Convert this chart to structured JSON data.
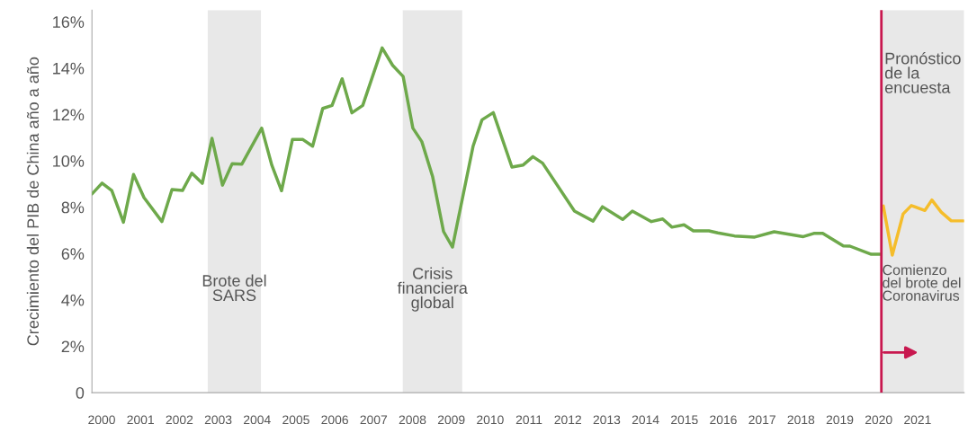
{
  "chart_data": {
    "type": "line",
    "ylabel": "Crecimiento del PIB de China año a año",
    "xlim": [
      1999.75,
      2022.2
    ],
    "xticks": [
      2000,
      2001,
      2002,
      2003,
      2004,
      2005,
      2006,
      2007,
      2008,
      2009,
      2010,
      2011,
      2012,
      2013,
      2014,
      2015,
      2016,
      2017,
      2018,
      2019,
      2020,
      2021
    ],
    "ylim": [
      0,
      16.5
    ],
    "yticks": [
      0,
      {
        "value": 2,
        "label": "2%"
      },
      {
        "value": 4,
        "label": "4%"
      },
      {
        "value": 6,
        "label": "6%"
      },
      {
        "value": 8,
        "label": "8%"
      },
      {
        "value": 10,
        "label": "10%"
      },
      {
        "value": 12,
        "label": "12%"
      },
      {
        "value": 14,
        "label": "14%"
      },
      {
        "value": 16,
        "label": "16%"
      }
    ],
    "grid": false,
    "legend": false,
    "series": [
      {
        "color": "#6ea94b",
        "x": [
          1999.75,
          2000.01,
          2000.26,
          2000.56,
          2000.82,
          2001.09,
          2001.55,
          2001.81,
          2002.08,
          2002.32,
          2002.59,
          2002.84,
          2003.11,
          2003.36,
          2003.61,
          2004.12,
          2004.38,
          2004.63,
          2004.91,
          2005.18,
          2005.43,
          2005.69,
          2005.93,
          2006.19,
          2006.44,
          2006.72,
          2007.22,
          2007.49,
          2007.76,
          2008.01,
          2008.24,
          2008.52,
          2008.8,
          2009.03,
          2009.56,
          2009.79,
          2010.08,
          2010.56,
          2010.85,
          2011.1,
          2011.35,
          2012.17,
          2012.65,
          2012.89,
          2013.41,
          2013.66,
          2014.15,
          2014.44,
          2014.68,
          2014.99,
          2015.23,
          2015.63,
          2015.86,
          2016.29,
          2016.81,
          2017.31,
          2018.06,
          2018.33,
          2018.56,
          2019.09,
          2019.26,
          2019.81,
          2020.05
        ],
        "values": [
          8.57,
          9.04,
          8.72,
          7.35,
          9.41,
          8.41,
          7.38,
          8.76,
          8.72,
          9.47,
          9.03,
          10.97,
          8.95,
          9.88,
          9.86,
          11.41,
          9.81,
          8.71,
          10.92,
          10.92,
          10.63,
          12.26,
          12.39,
          13.54,
          12.07,
          12.39,
          14.87,
          14.12,
          13.64,
          11.41,
          10.83,
          9.31,
          6.95,
          6.28,
          10.63,
          11.77,
          12.08,
          9.73,
          9.82,
          10.18,
          9.9,
          7.83,
          7.4,
          8.02,
          7.47,
          7.83,
          7.38,
          7.49,
          7.14,
          7.24,
          6.98,
          6.98,
          6.89,
          6.76,
          6.71,
          6.94,
          6.73,
          6.87,
          6.87,
          6.33,
          6.32,
          5.97,
          5.97
        ]
      },
      {
        "color": "#f5bd2b",
        "x": [
          2020.12,
          2020.35,
          2020.63,
          2020.84,
          2021.19,
          2021.37,
          2021.61,
          2021.87,
          2022.18
        ],
        "values": [
          8.05,
          5.93,
          7.71,
          8.07,
          7.86,
          8.31,
          7.79,
          7.41,
          7.41
        ]
      }
    ],
    "bands": [
      {
        "axis": "x",
        "from": 2002.73,
        "to": 2004.1,
        "label": "Brote del\nSARS",
        "color": "#e8e8e8"
      },
      {
        "axis": "x",
        "from": 2007.75,
        "to": 2009.28,
        "label": "Crisis\nfinanciera\nglobal",
        "color": "#e8e8e8"
      },
      {
        "axis": "x",
        "from": 2020.07,
        "to": 2022.2,
        "label": "Pronóstico\nde la\nencuesta",
        "color": "#e8e8e8"
      }
    ],
    "ref_lines": [
      {
        "axis": "x",
        "value": 2020.07,
        "label": "Comienzo\ndel brote del\nCoronavirus",
        "color": "#c8184f",
        "line_style": "solid"
      }
    ]
  }
}
